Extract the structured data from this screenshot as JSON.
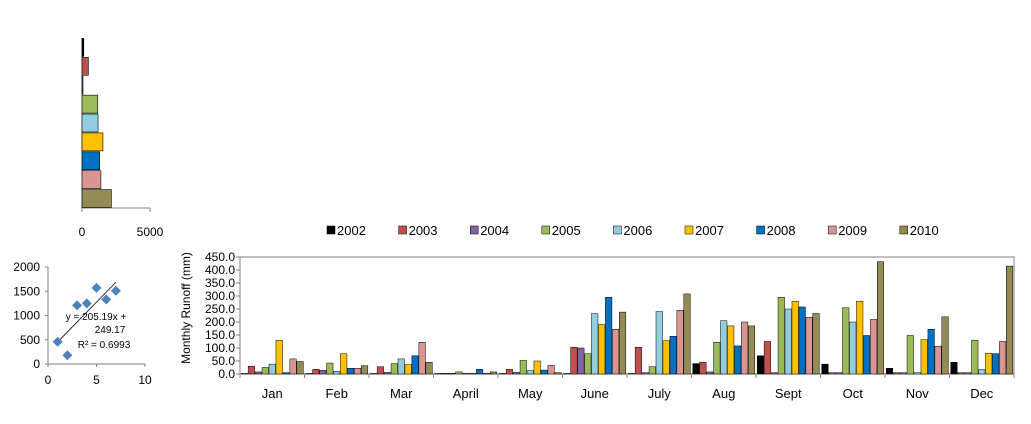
{
  "chart_data": [
    {
      "type": "bar",
      "orientation": "horizontal",
      "categories": [
        "2002",
        "2003",
        "2004",
        "2005",
        "2006",
        "2007",
        "2008",
        "2009",
        "2010"
      ],
      "values": [
        130,
        470,
        40,
        1160,
        1180,
        1540,
        1300,
        1390,
        2160
      ],
      "colors": [
        "#000000",
        "#C0504D",
        "#8064A2",
        "#9BBB59",
        "#93CDDD",
        "#FFC000",
        "#0070C0",
        "#D99594",
        "#948A54"
      ],
      "xlim": [
        0,
        5000
      ],
      "xticks": [
        "0",
        "5000"
      ]
    },
    {
      "type": "scatter",
      "points": [
        {
          "x": 1,
          "y": 460
        },
        {
          "x": 2,
          "y": 180
        },
        {
          "x": 3,
          "y": 1210
        },
        {
          "x": 4,
          "y": 1250
        },
        {
          "x": 5,
          "y": 1570
        },
        {
          "x": 6,
          "y": 1330
        },
        {
          "x": 7,
          "y": 1510
        }
      ],
      "trendline": {
        "slope": 205.19,
        "intercept": 249.17
      },
      "xlim": [
        0,
        10
      ],
      "ylim": [
        0,
        2000
      ],
      "xticks": [
        "0",
        "5",
        "10"
      ],
      "yticks": [
        "0",
        "500",
        "1000",
        "1500",
        "2000"
      ],
      "equation_lines": [
        "y = 205.19x +",
        "249.17",
        "R² = 0.6993"
      ],
      "marker_color": "#4F81BD"
    },
    {
      "type": "bar",
      "orientation": "vertical",
      "ylabel": "Monthly  Runoff (mm)",
      "ylim": [
        0,
        450
      ],
      "yticks": [
        "0.0",
        "50.0",
        "100.0",
        "150.0",
        "200.0",
        "250.0",
        "300.0",
        "350.0",
        "400.0",
        "450.0"
      ],
      "categories": [
        "Jan",
        "Feb",
        "Mar",
        "April",
        "May",
        "June",
        "July",
        "Aug",
        "Sept",
        "Oct",
        "Nov",
        "Dec"
      ],
      "legend_position": "top",
      "series": [
        {
          "name": "2002",
          "color": "#000000",
          "values": [
            2,
            2,
            2,
            2,
            2,
            2,
            2,
            40,
            70,
            38,
            22,
            45
          ]
        },
        {
          "name": "2003",
          "color": "#C0504D",
          "values": [
            30,
            18,
            28,
            3,
            18,
            103,
            103,
            45,
            125,
            5,
            5,
            5
          ]
        },
        {
          "name": "2004",
          "color": "#8064A2",
          "values": [
            8,
            14,
            6,
            3,
            6,
            100,
            5,
            8,
            5,
            5,
            5,
            5
          ]
        },
        {
          "name": "2005",
          "color": "#9BBB59",
          "values": [
            25,
            42,
            40,
            8,
            52,
            78,
            28,
            122,
            295,
            255,
            148,
            130
          ]
        },
        {
          "name": "2006",
          "color": "#93CDDD",
          "values": [
            38,
            10,
            58,
            3,
            13,
            232,
            240,
            205,
            250,
            200,
            5,
            17
          ]
        },
        {
          "name": "2007",
          "color": "#FFC000",
          "values": [
            130,
            78,
            36,
            3,
            50,
            190,
            128,
            185,
            280,
            280,
            132,
            80
          ]
        },
        {
          "name": "2008",
          "color": "#0070C0",
          "values": [
            5,
            22,
            70,
            18,
            15,
            295,
            145,
            108,
            258,
            148,
            172,
            78
          ]
        },
        {
          "name": "2009",
          "color": "#D99594",
          "values": [
            58,
            22,
            122,
            3,
            33,
            172,
            245,
            200,
            218,
            210,
            107,
            125
          ]
        },
        {
          "name": "2010",
          "color": "#948A54",
          "values": [
            48,
            32,
            45,
            8,
            5,
            238,
            308,
            185,
            233,
            432,
            220,
            415
          ]
        }
      ]
    }
  ]
}
